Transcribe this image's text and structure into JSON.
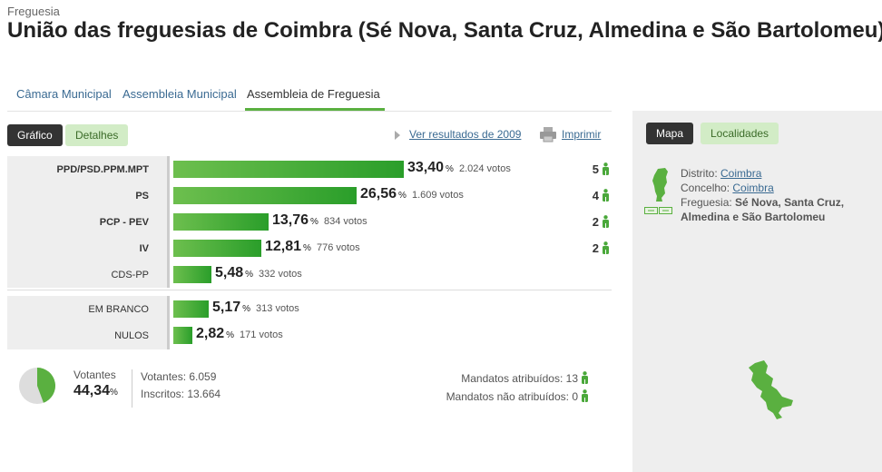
{
  "header": {
    "kicker": "Freguesia",
    "title": "União das freguesias de Coimbra (Sé Nova, Santa Cruz, Almedina e São Bartolomeu)"
  },
  "tabs": [
    {
      "label": "Câmara Municipal",
      "active": false
    },
    {
      "label": "Assembleia Municipal",
      "active": false
    },
    {
      "label": "Assembleia de Freguesia",
      "active": true
    }
  ],
  "view_toggle": {
    "grafico": "Gráfico",
    "detalhes": "Detalhes"
  },
  "links": {
    "ver_2009": "Ver resultados de 2009",
    "imprimir": "Imprimir"
  },
  "results": [
    {
      "party": "PPD/PSD.PPM.MPT",
      "pct": "33,40",
      "votes": "2.024 votos",
      "seats": "5",
      "value": 33.4
    },
    {
      "party": "PS",
      "pct": "26,56",
      "votes": "1.609 votos",
      "seats": "4",
      "value": 26.56
    },
    {
      "party": "PCP - PEV",
      "pct": "13,76",
      "votes": "834 votos",
      "seats": "2",
      "value": 13.76
    },
    {
      "party": "IV",
      "pct": "12,81",
      "votes": "776 votos",
      "seats": "2",
      "value": 12.81
    },
    {
      "party": "CDS-PP",
      "pct": "5,48",
      "votes": "332 votos",
      "seats": "",
      "value": 5.48
    }
  ],
  "other": [
    {
      "party": "EM BRANCO",
      "pct": "5,17",
      "votes": "313 votos",
      "value": 5.17
    },
    {
      "party": "NULOS",
      "pct": "2,82",
      "votes": "171 votos",
      "value": 2.82
    }
  ],
  "percent_sign": "%",
  "summary": {
    "votantes_label": "Votantes",
    "turnout_pct": "44,34",
    "turnout_value": 44.34,
    "votantes": "Votantes: 6.059",
    "inscritos": "Inscritos: 13.664",
    "mandatos_atribuidos": "Mandatos atribuídos: 13",
    "mandatos_nao_atribuidos": "Mandatos não atribuídos: 0"
  },
  "sidebar": {
    "mapa": "Mapa",
    "localidades": "Localidades",
    "distrito_label": "Distrito:",
    "distrito": "Coimbra",
    "concelho_label": "Concelho:",
    "concelho": "Coimbra",
    "freguesia_label": "Freguesia:",
    "freguesia_line1": "Sé Nova, Santa Cruz,",
    "freguesia_line2": "Almedina e São Bartolomeu"
  },
  "colors": {
    "accent_green": "#5ab040",
    "bar_green": "#3aa53a",
    "link_blue": "#3a6a92",
    "dark_pill": "#333333"
  },
  "icons": [
    "print-icon",
    "triangle-right-icon",
    "person-icon",
    "portugal-map-icon",
    "parish-map-icon",
    "pie-chart-icon"
  ]
}
